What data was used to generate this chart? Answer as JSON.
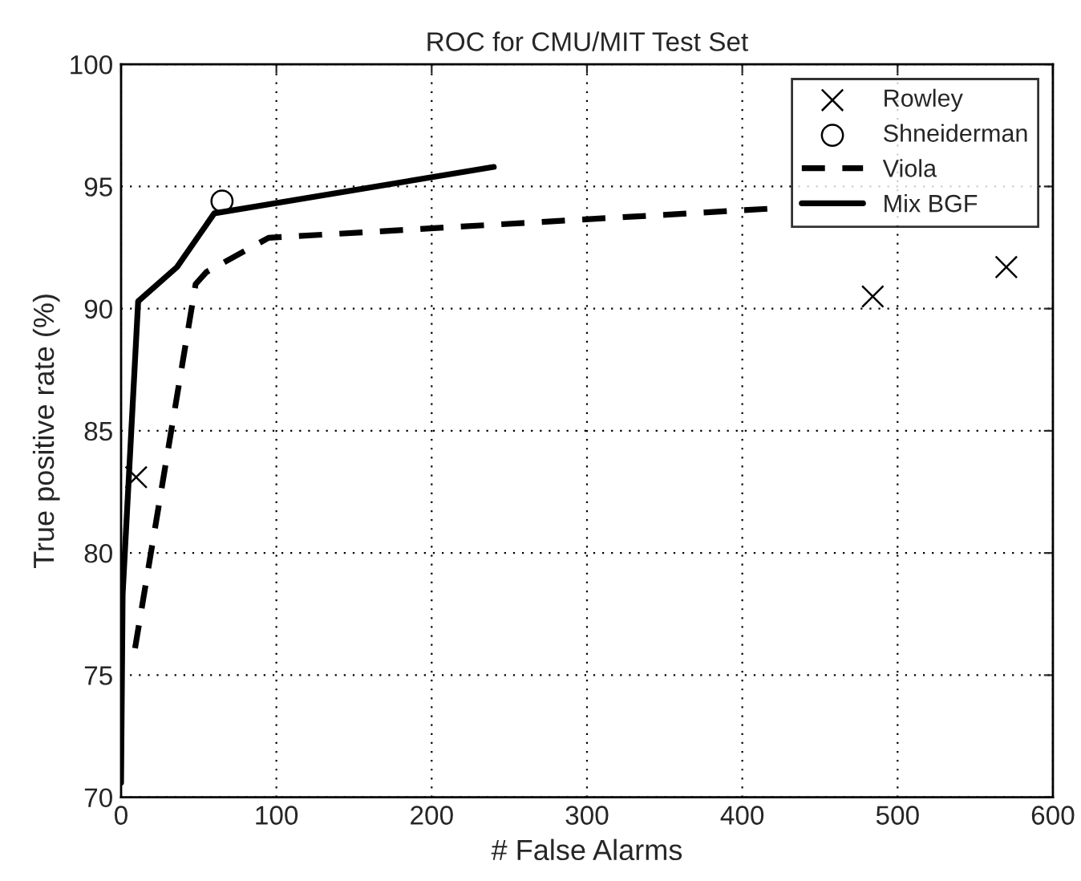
{
  "chart_data": {
    "type": "line",
    "title": "ROC for CMU/MIT Test Set",
    "xlabel": "# False Alarms",
    "ylabel": "True positive rate (%)",
    "series": [
      {
        "name": "Rowley",
        "type": "scatter",
        "marker": "cross",
        "color": "#000000",
        "x": [
          9.7,
          484,
          570
        ],
        "values": [
          83.1,
          90.5,
          91.7
        ]
      },
      {
        "name": "Shneiderman",
        "type": "scatter",
        "marker": "circle",
        "color": "#000000",
        "x": [
          65
        ],
        "values": [
          94.4
        ]
      },
      {
        "name": "Viola",
        "line_style": "dashed",
        "color": "#000000",
        "x": [
          9,
          48,
          55,
          95,
          420
        ],
        "values": [
          76.1,
          91.0,
          91.5,
          92.9,
          94.1
        ]
      },
      {
        "name": "Mix BGF",
        "line_style": "solid",
        "color": "#000000",
        "x": [
          0,
          1,
          11,
          36,
          60,
          240
        ],
        "values": [
          70.6,
          78.3,
          90.3,
          91.7,
          93.9,
          95.8
        ]
      }
    ],
    "xlim": [
      0,
      600
    ],
    "ylim": [
      70,
      100
    ],
    "xticks": [
      0,
      100,
      200,
      300,
      400,
      500,
      600
    ],
    "yticks": [
      70,
      75,
      80,
      85,
      90,
      95,
      100
    ],
    "grid": true,
    "legend": "top right"
  }
}
